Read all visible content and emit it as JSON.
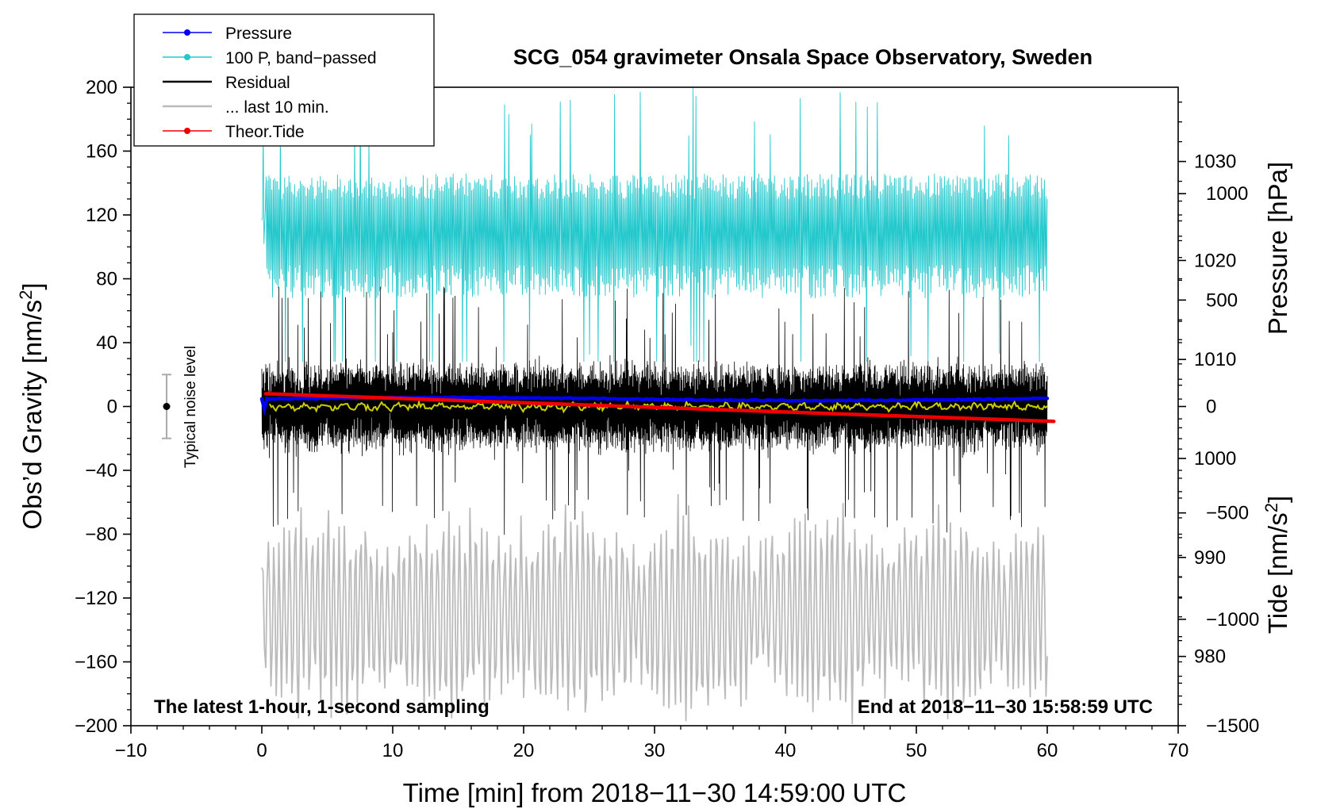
{
  "chart_data": {
    "type": "line",
    "title": "SCG_054 gravimeter Onsala Space Observatory, Sweden",
    "xlabel": "Time [min] from 2018−11−30 14:59:00 UTC",
    "ylabel_main": "Obs’d Gravity [nm/s",
    "ylabel_main_sup": "2",
    "ylabel_main_close": "]",
    "ylabel_pressure": "Pressure [hPa]",
    "ylabel_tide": "Tide [nm/s",
    "ylabel_tide_sup": "2",
    "ylabel_tide_close": "]",
    "xlim": [
      -10,
      70
    ],
    "ylim": [
      -200,
      200
    ],
    "pressure_axis_range": [
      973.0,
      1037.5
    ],
    "tide_axis_range": [
      -1500,
      1500
    ],
    "x_ticks": [
      -10,
      0,
      10,
      20,
      30,
      40,
      50,
      60,
      70
    ],
    "x_tick_labels": [
      "−10",
      "0",
      "10",
      "20",
      "30",
      "40",
      "50",
      "60",
      "70"
    ],
    "y_ticks": [
      200,
      160,
      120,
      80,
      40,
      0,
      -40,
      -80,
      -120,
      -160,
      -200
    ],
    "y_tick_labels": [
      "200",
      "160",
      "120",
      "80",
      "40",
      "0",
      "−40",
      "−80",
      "−120",
      "−160",
      "−200"
    ],
    "pressure_ticks": [
      1030,
      1020,
      1010,
      1000,
      990,
      980
    ],
    "pressure_tick_labels": [
      "1030",
      "1020",
      "1010",
      "1000",
      "990",
      "980"
    ],
    "tide_ticks": [
      1000,
      500,
      0,
      -500,
      -1000,
      -1500
    ],
    "tide_tick_labels": [
      "1000",
      "500",
      "0",
      "−500",
      "−1000",
      "−1500"
    ],
    "note_left": "The latest 1-hour, 1-second sampling",
    "note_right": "End at 2018−11−30 15:58:59 UTC",
    "noise_label": "Typical noise level",
    "noise_level_range": [
      -20,
      20
    ],
    "time_range_min": [
      0,
      60
    ],
    "tide_time_range_min": [
      0.3,
      60.5
    ],
    "legend": [
      {
        "label": "Pressure",
        "color": "#0000ee",
        "marker": true
      },
      {
        "label": "100 P, band−passed",
        "color": "#22c8cc",
        "marker": true
      },
      {
        "label": "Residual",
        "color": "#000000",
        "marker": false
      },
      {
        "label": "... last 10 min.",
        "color": "#bbbbbb",
        "marker": false
      },
      {
        "label": "Theor.Tide",
        "color": "#ee0000",
        "marker": true
      }
    ],
    "series": [
      {
        "name": "Pressure",
        "axis": "pressure_hPa",
        "color": "#0000ee",
        "approx_level": 1006,
        "approx_range": [
          1005,
          1007
        ]
      },
      {
        "name": "100 P, band−passed",
        "axis": "gravity_nm_s2",
        "color": "#22c8cc",
        "approx_center": 110,
        "approx_range": [
          30,
          200
        ]
      },
      {
        "name": "Residual",
        "axis": "gravity_nm_s2",
        "color": "#000000",
        "approx_center": 0,
        "approx_range": [
          -87,
          75
        ]
      },
      {
        "name": "... last 10 min.",
        "axis": "gravity_nm_s2",
        "color": "#bbbbbb",
        "approx_center": -130,
        "approx_range": [
          -200,
          -50
        ]
      },
      {
        "name": "Smoothed residual",
        "axis": "gravity_nm_s2",
        "color": "#cccc00",
        "approx_center": 0,
        "approx_range": [
          -3,
          3
        ]
      },
      {
        "name": "Theor.Tide",
        "axis": "tide_nm_s2",
        "color": "#ee0000",
        "start": 60,
        "end": -70
      }
    ]
  }
}
